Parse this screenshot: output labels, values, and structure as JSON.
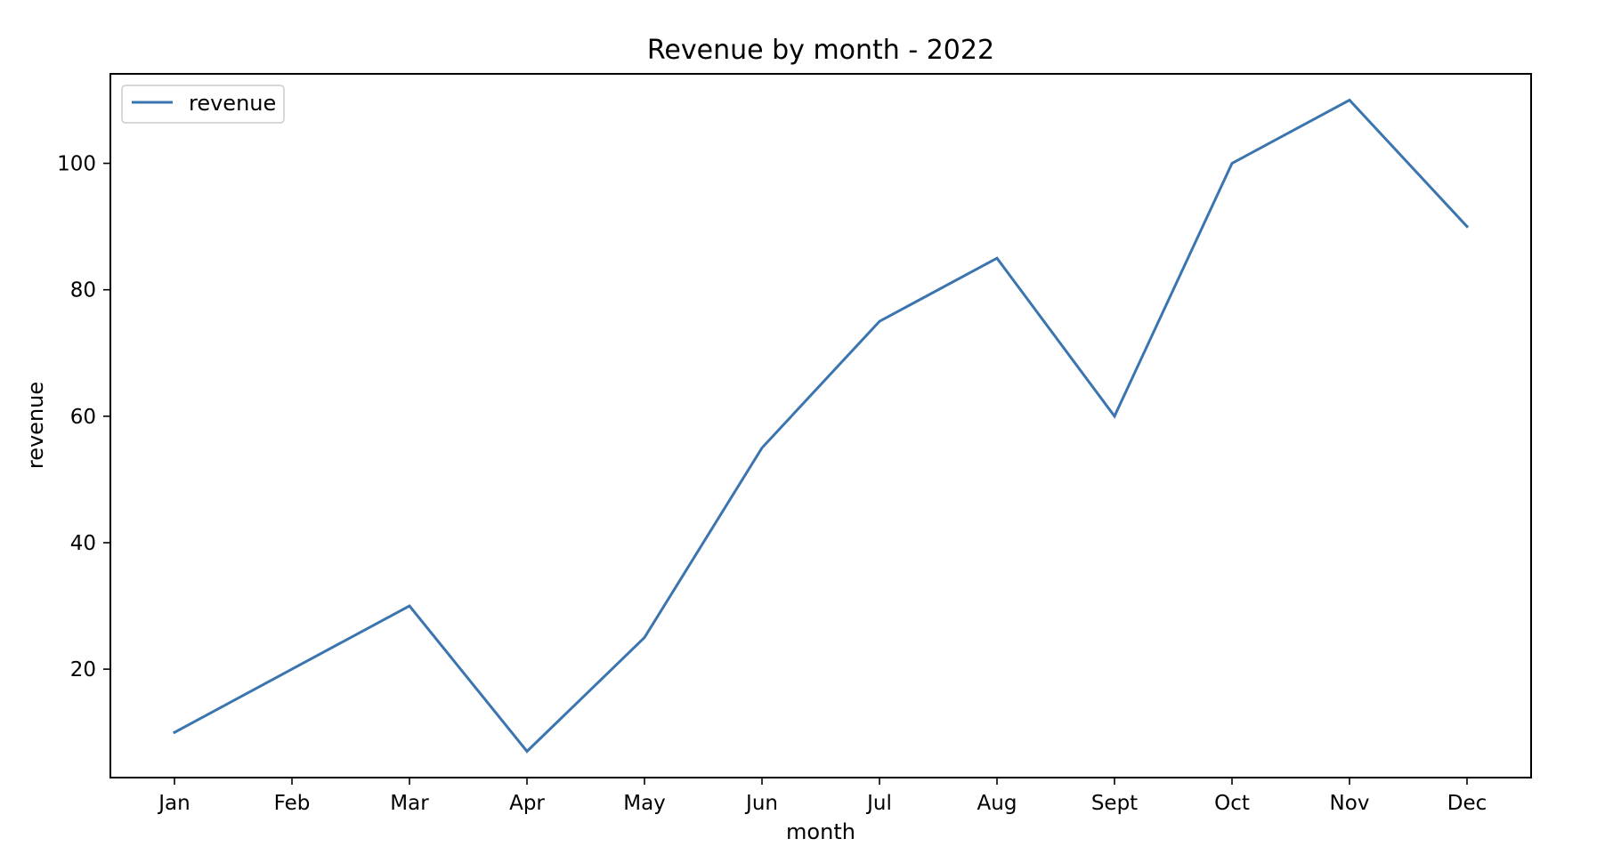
{
  "chart_data": {
    "type": "line",
    "title": "Revenue by month - 2022",
    "xlabel": "month",
    "ylabel": "revenue",
    "categories": [
      "Jan",
      "Feb",
      "Mar",
      "Apr",
      "May",
      "Jun",
      "Jul",
      "Aug",
      "Sept",
      "Oct",
      "Nov",
      "Dec"
    ],
    "series": [
      {
        "name": "revenue",
        "values": [
          10,
          20,
          30,
          7,
          25,
          55,
          75,
          85,
          60,
          100,
          110,
          90
        ],
        "color": "#3b75af"
      }
    ],
    "yticks": [
      20,
      40,
      60,
      80,
      100
    ],
    "ylim": [
      2.85,
      114.15
    ],
    "grid": false,
    "legend_position": "top-left"
  }
}
